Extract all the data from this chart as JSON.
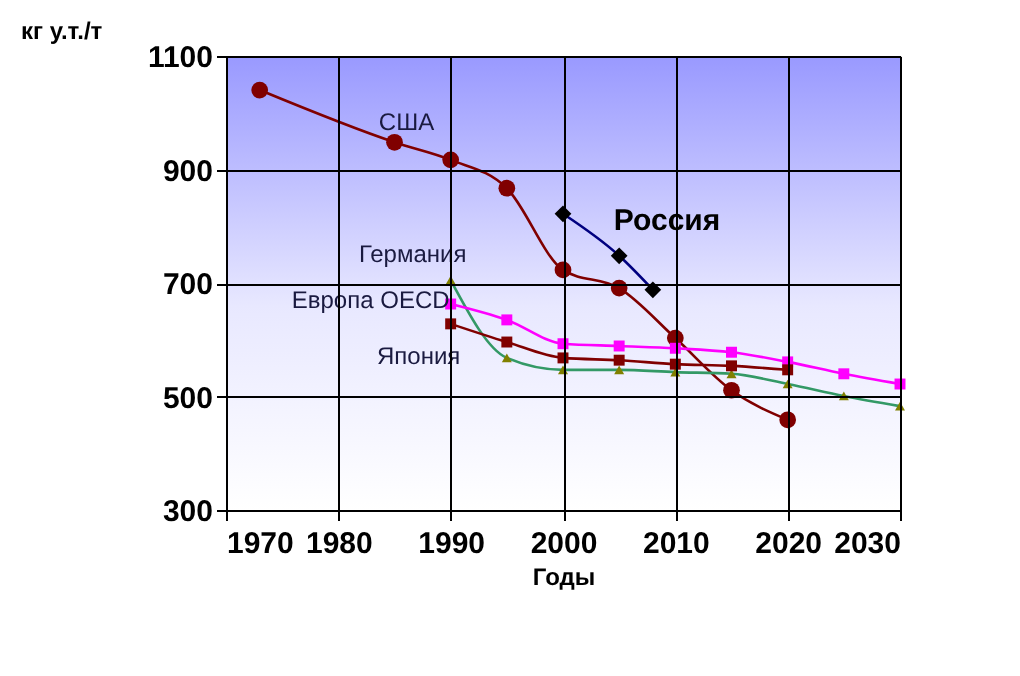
{
  "chart_data": {
    "type": "line",
    "ylabel": "кг у.т./т",
    "xlabel": "Годы",
    "xlim": [
      1970,
      2030
    ],
    "xticks": [
      1970,
      1980,
      1990,
      2000,
      2010,
      2020,
      2030
    ],
    "ylim": [
      300,
      1100
    ],
    "yticks": [
      300,
      500,
      700,
      900,
      1100
    ],
    "grid": true,
    "series": [
      {
        "name": "США",
        "color": "#800000",
        "marker": "circle",
        "x": [
          1973,
          1985,
          1990,
          1995,
          2000,
          2005,
          2010,
          2015,
          2020
        ],
        "values": [
          1040,
          948,
          917,
          867,
          723,
          691,
          603,
          511,
          459
        ]
      },
      {
        "name": "Россия",
        "color": "#000080",
        "marker": "diamond",
        "x": [
          2000,
          2005,
          2008
        ],
        "values": [
          822,
          748,
          688
        ]
      },
      {
        "name": "Германия",
        "color": "#339966",
        "marker": "triangle",
        "x": [
          1990,
          1995,
          2000,
          2005,
          2010,
          2015,
          2020,
          2025,
          2030
        ],
        "values": [
          705,
          568,
          547,
          547,
          543,
          540,
          522,
          501,
          483
        ]
      },
      {
        "name": "Европа OECD",
        "color": "#ff00ff",
        "marker": "square",
        "x": [
          1990,
          1995,
          2000,
          2005,
          2010,
          2015,
          2020,
          2025,
          2030
        ],
        "values": [
          663,
          635,
          593,
          589,
          585,
          578,
          561,
          540,
          522
        ]
      },
      {
        "name": "Япония",
        "color": "#800000",
        "marker": "square",
        "x": [
          1990,
          1995,
          2000,
          2005,
          2010,
          2015,
          2020
        ],
        "values": [
          628,
          596,
          568,
          564,
          557,
          554,
          547
        ]
      }
    ]
  }
}
